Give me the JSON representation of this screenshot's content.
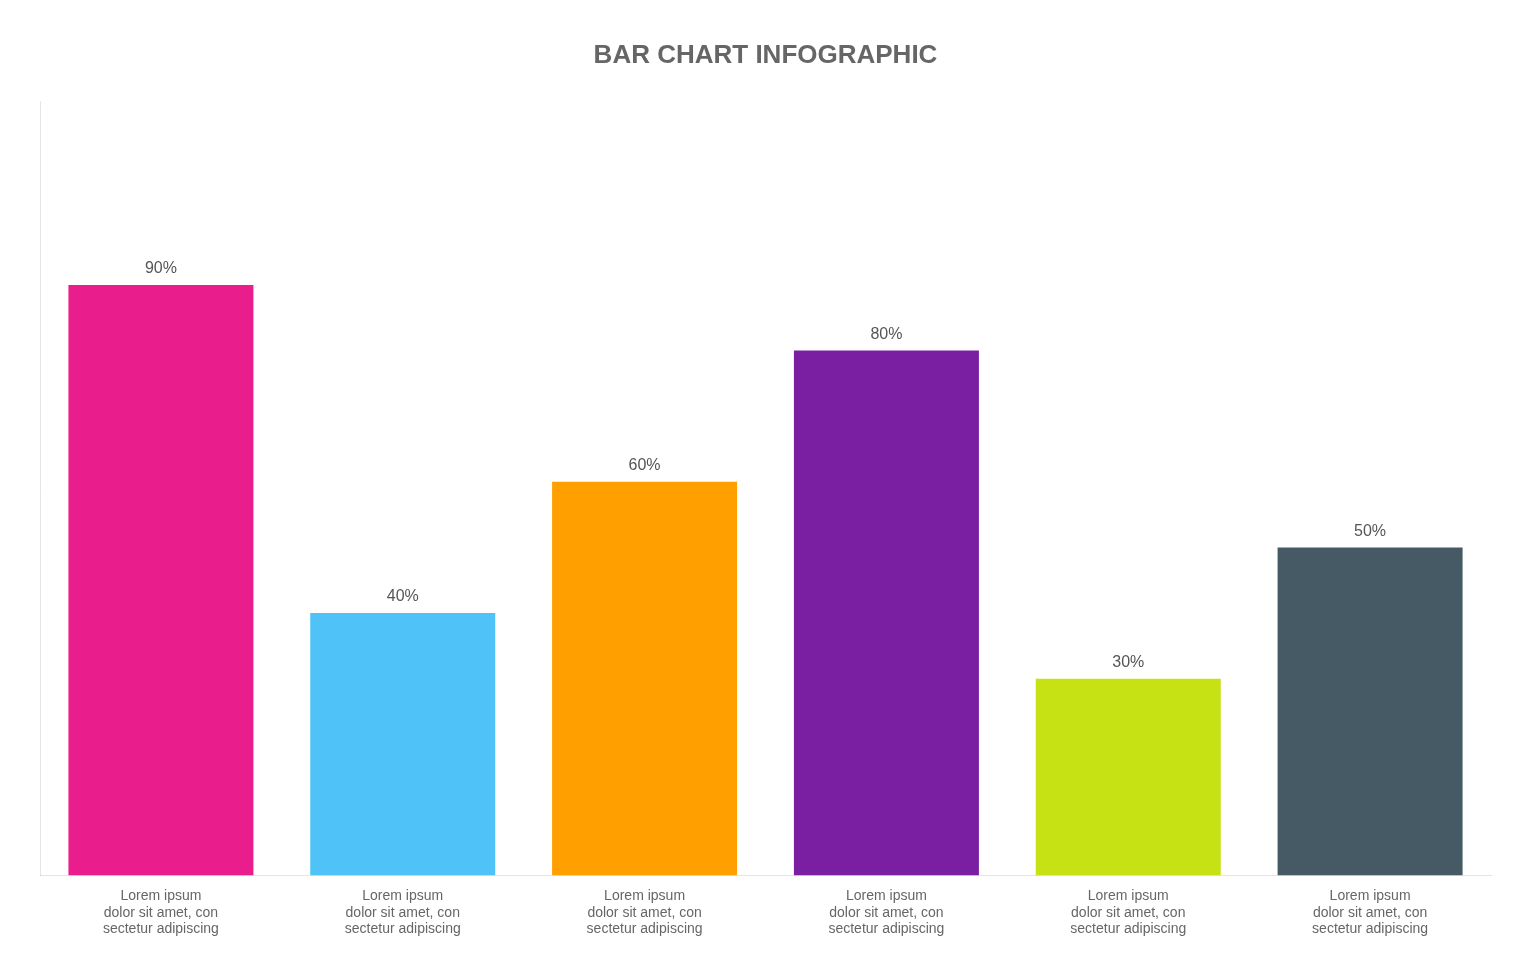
{
  "chart_data": {
    "type": "bar",
    "title": "BAR CHART INFOGRAPHIC",
    "categories": [
      "Lorem ipsum\ndolor sit amet, con\nsectetur adipiscing",
      "Lorem ipsum\ndolor sit amet, con\nsectetur adipiscing",
      "Lorem ipsum\ndolor sit amet, con\nsectetur adipiscing",
      "Lorem ipsum\ndolor sit amet, con\nsectetur adipiscing",
      "Lorem ipsum\ndolor sit amet, con\nsectetur adipiscing",
      "Lorem ipsum\ndolor sit amet, con\nsectetur adipiscing"
    ],
    "values": [
      0.9,
      0.4,
      0.6,
      0.8,
      0.3,
      0.5
    ],
    "value_labels": [
      "90%",
      "40%",
      "60%",
      "80%",
      "30%",
      "50%"
    ],
    "colors": [
      "#E91E8C",
      "#4FC3F7",
      "#FFA000",
      "#7B1FA2",
      "#C6E114",
      "#455A64"
    ],
    "ylim": [
      0,
      1.18
    ],
    "data_labels": true,
    "tick_labels": "x",
    "grid": false
  }
}
